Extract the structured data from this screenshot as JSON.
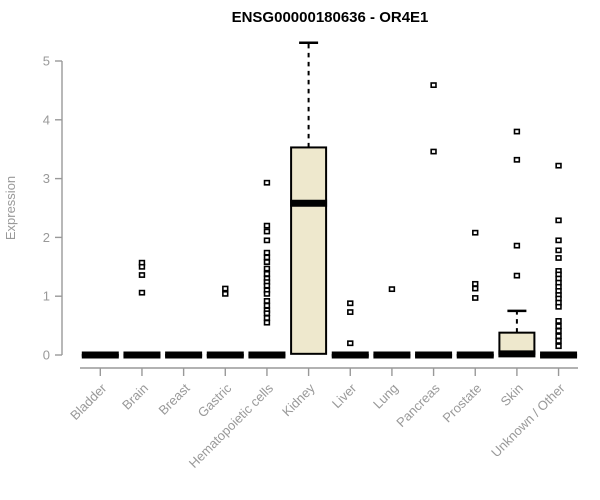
{
  "chart_data": {
    "type": "box",
    "title": "ENSG00000180636 - OR4E1",
    "ylabel": "Expression",
    "xlabel": "",
    "ylim": [
      0,
      5
    ],
    "yticks": [
      0,
      1,
      2,
      3,
      4,
      5
    ],
    "grid": false,
    "legend": false,
    "box_fill_color": "#eee8cd",
    "box_stroke_color": "#000000",
    "axis_color": "#999999",
    "title_color": "#000000",
    "categories": [
      "Bladder",
      "Brain",
      "Breast",
      "Gastric",
      "Hematopoietic cells",
      "Kidney",
      "Liver",
      "Lung",
      "Pancreas",
      "Prostate",
      "Skin",
      "Unknown / Other"
    ],
    "series": [
      {
        "category": "Bladder",
        "q1": 0,
        "median": 0,
        "q3": 0,
        "whisker_low": 0,
        "whisker_high": 0,
        "outliers": []
      },
      {
        "category": "Brain",
        "q1": 0,
        "median": 0,
        "q3": 0,
        "whisker_low": 0,
        "whisker_high": 0,
        "outliers": [
          1.57,
          1.5,
          1.36,
          1.06
        ]
      },
      {
        "category": "Breast",
        "q1": 0,
        "median": 0,
        "q3": 0,
        "whisker_low": 0,
        "whisker_high": 0,
        "outliers": []
      },
      {
        "category": "Gastric",
        "q1": 0,
        "median": 0,
        "q3": 0,
        "whisker_low": 0,
        "whisker_high": 0,
        "outliers": [
          1.13,
          1.04
        ]
      },
      {
        "category": "Hematopoietic cells",
        "q1": 0,
        "median": 0,
        "q3": 0,
        "whisker_low": 0,
        "whisker_high": 0,
        "outliers": [
          2.93,
          2.2,
          2.1,
          1.95,
          1.74,
          1.66,
          1.58,
          1.47,
          1.38,
          1.3,
          1.24,
          1.18,
          1.1,
          1.04,
          0.92,
          0.84,
          0.76,
          0.71,
          0.63,
          0.55
        ]
      },
      {
        "category": "Kidney",
        "q1": 0.02,
        "median": 2.58,
        "q3": 3.53,
        "whisker_low": 0,
        "whisker_high": 5.31,
        "outliers": []
      },
      {
        "category": "Liver",
        "q1": 0,
        "median": 0,
        "q3": 0,
        "whisker_low": 0,
        "whisker_high": 0,
        "outliers": [
          0.88,
          0.73,
          0.2
        ]
      },
      {
        "category": "Lung",
        "q1": 0,
        "median": 0,
        "q3": 0,
        "whisker_low": 0,
        "whisker_high": 0,
        "outliers": [
          1.12
        ]
      },
      {
        "category": "Pancreas",
        "q1": 0,
        "median": 0,
        "q3": 0,
        "whisker_low": 0,
        "whisker_high": 0,
        "outliers": [
          4.59,
          3.46
        ]
      },
      {
        "category": "Prostate",
        "q1": 0,
        "median": 0,
        "q3": 0,
        "whisker_low": 0,
        "whisker_high": 0,
        "outliers": [
          2.08,
          1.21,
          1.13,
          0.97
        ]
      },
      {
        "category": "Skin",
        "q1": 0.02,
        "median": 0.02,
        "q3": 0.38,
        "whisker_low": 0,
        "whisker_high": 0.75,
        "outliers": [
          3.8,
          3.32,
          1.86,
          1.35
        ]
      },
      {
        "category": "Unknown / Other",
        "q1": 0,
        "median": 0,
        "q3": 0,
        "whisker_low": 0,
        "whisker_high": 0,
        "outliers": [
          3.22,
          2.29,
          1.95,
          1.78,
          1.65,
          1.43,
          1.37,
          1.3,
          1.23,
          1.16,
          1.09,
          1.02,
          0.96,
          0.89,
          0.82,
          0.58,
          0.49,
          0.41,
          0.32,
          0.24,
          0.15
        ]
      }
    ]
  }
}
